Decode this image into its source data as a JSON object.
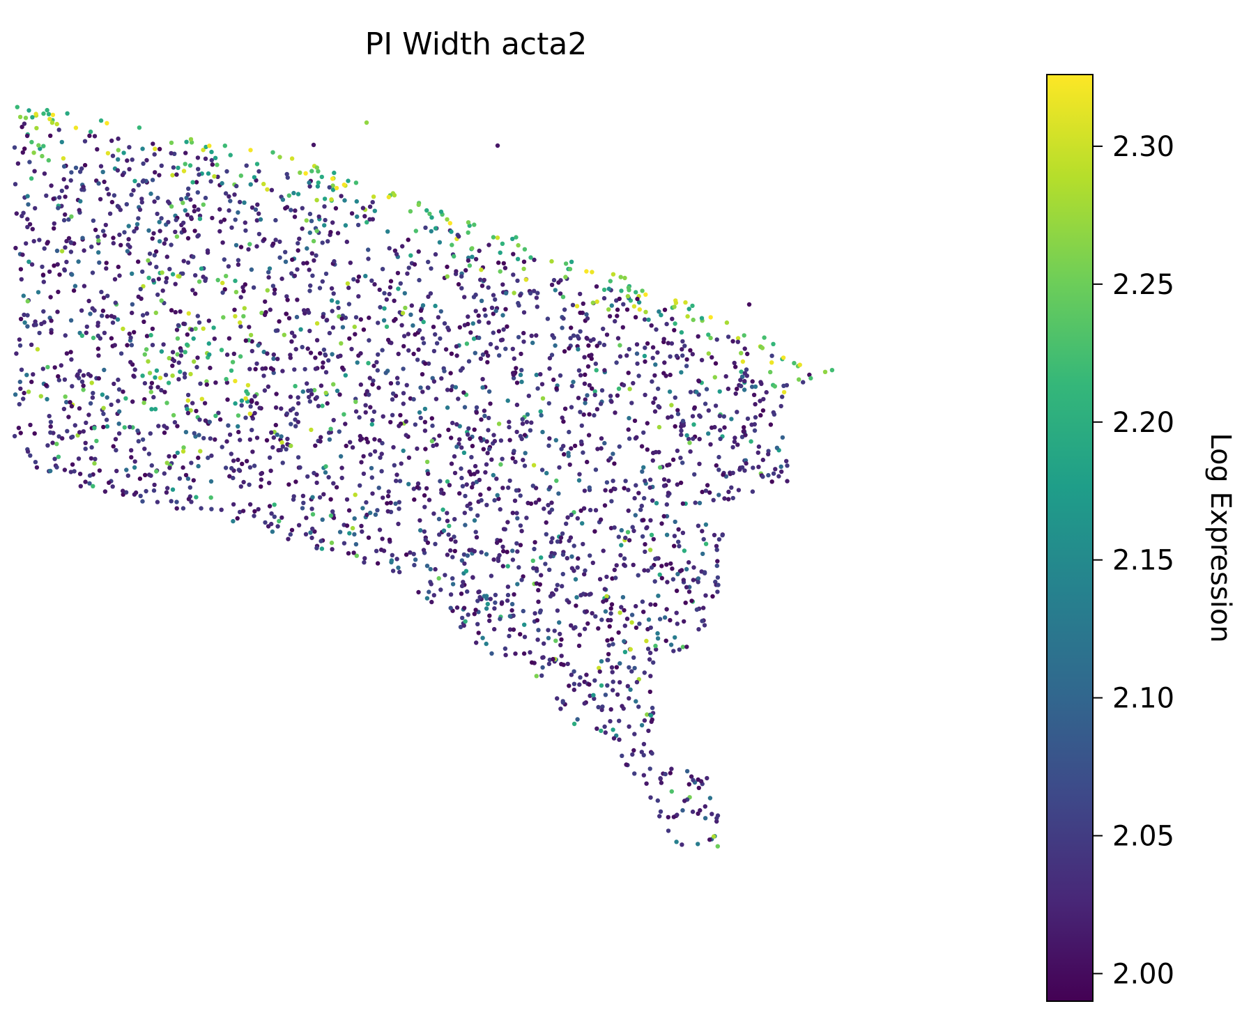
{
  "chart_data": {
    "type": "scatter",
    "title": "PI Width acta2",
    "xlabel": "",
    "ylabel": "",
    "axes_visible": false,
    "grid": false,
    "legend": "none",
    "colormap": "viridis",
    "colormap_stops": [
      "#440154",
      "#482878",
      "#3e4989",
      "#31688e",
      "#26828e",
      "#1f9e89",
      "#35b779",
      "#6ece58",
      "#b5de2b",
      "#fde725"
    ],
    "colorbar": {
      "label": "Log Expression",
      "range": [
        1.99,
        2.326
      ],
      "ticks": [
        2.0,
        2.05,
        2.1,
        2.15,
        2.2,
        2.25,
        2.3
      ],
      "tick_labels": [
        "2.00",
        "2.05",
        "2.10",
        "2.15",
        "2.20",
        "2.25",
        "2.30"
      ],
      "placement": "right"
    },
    "points_description": "about 3000 spatial spots in a tissue outline; most near 2.00-2.05, with high values (up to 2.33) along the top edge",
    "point_count": 3000
  }
}
